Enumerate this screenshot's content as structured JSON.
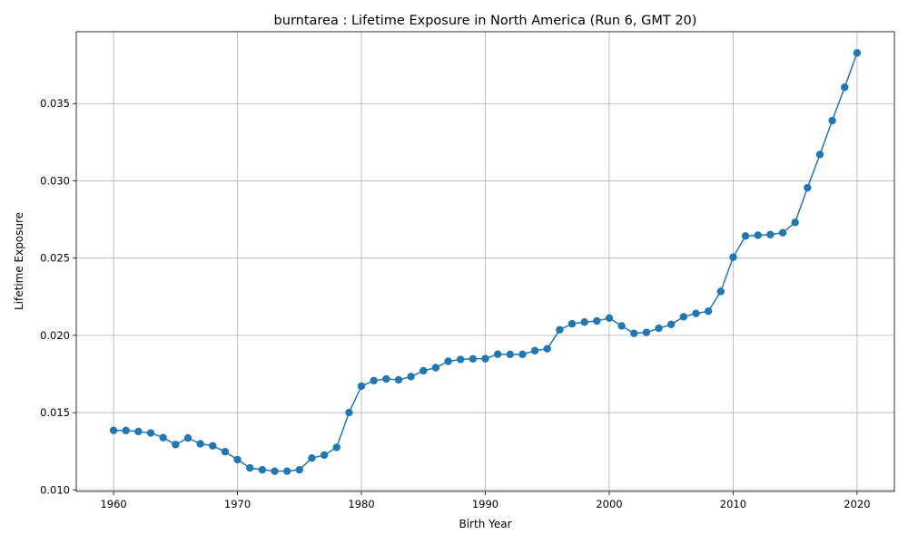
{
  "chart_data": {
    "type": "line",
    "title": "burntarea : Lifetime Exposure in North America (Run 6, GMT 20)",
    "xlabel": "Birth Year",
    "ylabel": "Lifetime Exposure",
    "xlim": [
      1956.988,
      2023.012
    ],
    "ylim": [
      0.0099,
      0.03965
    ],
    "xticks": [
      1960,
      1970,
      1980,
      1990,
      2000,
      2010,
      2020
    ],
    "xtick_labels": [
      "1960",
      "1970",
      "1980",
      "1990",
      "2000",
      "2010",
      "2020"
    ],
    "yticks": [
      0.01,
      0.015,
      0.02,
      0.025,
      0.03,
      0.035
    ],
    "ytick_labels": [
      "0.010",
      "0.015",
      "0.020",
      "0.025",
      "0.030",
      "0.035"
    ],
    "grid": true,
    "legend": false,
    "color": "#1f77b4",
    "series": [
      {
        "x": [
          1960,
          1961,
          1962,
          1963,
          1964,
          1965,
          1966,
          1967,
          1968,
          1969,
          1970,
          1971,
          1972,
          1973,
          1974,
          1975,
          1976,
          1977,
          1978,
          1979,
          1980,
          1981,
          1982,
          1983,
          1984,
          1985,
          1986,
          1987,
          1988,
          1989,
          1990,
          1991,
          1992,
          1993,
          1994,
          1995,
          1996,
          1997,
          1998,
          1999,
          2000,
          2001,
          2002,
          2003,
          2004,
          2005,
          2006,
          2007,
          2008,
          2009,
          2010,
          2011,
          2012,
          2013,
          2014,
          2015,
          2016,
          2017,
          2018,
          2019,
          2020
        ],
        "values": [
          0.01385,
          0.01384,
          0.01378,
          0.01368,
          0.01338,
          0.01293,
          0.01336,
          0.01298,
          0.01285,
          0.01247,
          0.01196,
          0.01142,
          0.0113,
          0.01121,
          0.01121,
          0.0113,
          0.01206,
          0.01225,
          0.01275,
          0.015,
          0.01671,
          0.01707,
          0.01718,
          0.01712,
          0.01733,
          0.01771,
          0.01791,
          0.01832,
          0.01844,
          0.01848,
          0.01849,
          0.01878,
          0.01877,
          0.01877,
          0.01901,
          0.01913,
          0.02036,
          0.02075,
          0.02086,
          0.02093,
          0.02112,
          0.02061,
          0.02013,
          0.02019,
          0.02046,
          0.02071,
          0.0212,
          0.02142,
          0.02156,
          0.02284,
          0.02506,
          0.02643,
          0.02648,
          0.02652,
          0.02664,
          0.02731,
          0.02955,
          0.0317,
          0.0339,
          0.03606,
          0.03828
        ]
      }
    ]
  }
}
